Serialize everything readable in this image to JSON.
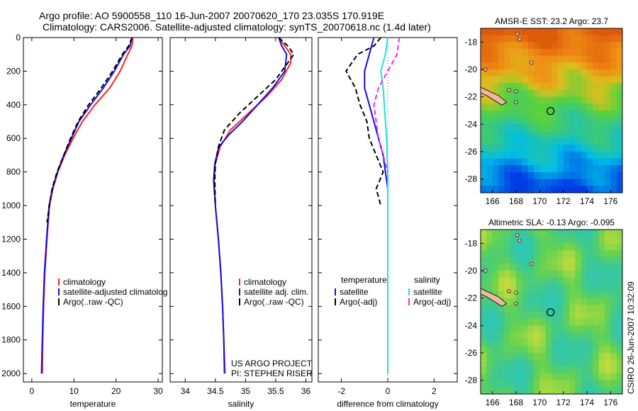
{
  "header": {
    "line1": "Argo profile: AO 5900558_110 16-Jun-2007 20070620_170 23.035S 170.919E",
    "line2": "Climatology: CARS2006. Satellite-adjusted climatology: synTS_20070618.nc (1.4d later)"
  },
  "credits": {
    "project": "US ARGO PROJECT",
    "pi": "PI: STEPHEN RISER",
    "stamp": "CSIRO 26-Jun-2007 10:32:09"
  },
  "colors": {
    "climatology": "#ff2020",
    "satellite": "#1010e0",
    "argo": "#000000",
    "sat_salinity": "#20e0e0",
    "argo_adj_sal": "#ff20ff"
  },
  "chart_data": [
    {
      "type": "line",
      "name": "temperature",
      "xlabel": "temperature",
      "ylabel": "",
      "xlim": [
        -2,
        31
      ],
      "ylim": [
        2050,
        0
      ],
      "xticks": [
        0,
        10,
        20,
        30
      ],
      "yticks": [
        0,
        200,
        400,
        600,
        800,
        1000,
        1200,
        1400,
        1600,
        1800,
        2000
      ],
      "legend": [
        "climatology",
        "satellite-adjusted climatolog",
        "Argo(..raw -QC)"
      ],
      "series": [
        {
          "name": "climatology",
          "style": "solid",
          "color": "#ff2020",
          "points": [
            [
              24,
              0
            ],
            [
              23.8,
              50
            ],
            [
              22.8,
              100
            ],
            [
              21,
              200
            ],
            [
              18.5,
              300
            ],
            [
              15,
              400
            ],
            [
              12,
              500
            ],
            [
              9.8,
              600
            ],
            [
              7.8,
              700
            ],
            [
              6.2,
              800
            ],
            [
              5,
              900
            ],
            [
              4.2,
              1000
            ],
            [
              3.6,
              1200
            ],
            [
              3.1,
              1400
            ],
            [
              2.8,
              1600
            ],
            [
              2.6,
              1800
            ],
            [
              2.5,
              2000
            ]
          ]
        },
        {
          "name": "satellite",
          "style": "solid",
          "color": "#1010e0",
          "points": [
            [
              23.8,
              0
            ],
            [
              23.3,
              50
            ],
            [
              21.8,
              100
            ],
            [
              19.6,
              200
            ],
            [
              17,
              300
            ],
            [
              14,
              400
            ],
            [
              11.2,
              500
            ],
            [
              9.4,
              600
            ],
            [
              7.6,
              700
            ],
            [
              6.1,
              800
            ],
            [
              4.9,
              900
            ],
            [
              4.1,
              1000
            ],
            [
              3.5,
              1200
            ],
            [
              3,
              1400
            ],
            [
              2.7,
              1600
            ],
            [
              2.5,
              1800
            ],
            [
              2.3,
              2000
            ]
          ]
        },
        {
          "name": "Argo",
          "style": "dashed",
          "color": "#000000",
          "points": [
            [
              23.8,
              0
            ],
            [
              23,
              50
            ],
            [
              21.5,
              100
            ],
            [
              19.2,
              200
            ],
            [
              16.5,
              300
            ],
            [
              13.5,
              400
            ],
            [
              11,
              500
            ],
            [
              9.2,
              600
            ],
            [
              7.6,
              700
            ],
            [
              6,
              800
            ],
            [
              4.8,
              900
            ],
            [
              4.2,
              1000
            ],
            [
              3.6,
              1100
            ]
          ]
        }
      ]
    },
    {
      "type": "line",
      "name": "salinity",
      "xlabel": "salinity",
      "xlim": [
        33.75,
        36.1
      ],
      "ylim": [
        2050,
        0
      ],
      "xticks": [
        34,
        34.5,
        35,
        35.5,
        36
      ],
      "legend": [
        "climatology",
        "satellite adj. clim.",
        "Argo(..raw -QC)"
      ],
      "series": [
        {
          "name": "climatology",
          "style": "solid",
          "color": "#ff2020",
          "points": [
            [
              35.55,
              0
            ],
            [
              35.65,
              50
            ],
            [
              35.75,
              100
            ],
            [
              35.75,
              150
            ],
            [
              35.6,
              250
            ],
            [
              35.35,
              350
            ],
            [
              35.05,
              450
            ],
            [
              34.75,
              550
            ],
            [
              34.58,
              650
            ],
            [
              34.5,
              750
            ],
            [
              34.48,
              850
            ],
            [
              34.5,
              1000
            ],
            [
              34.55,
              1200
            ],
            [
              34.59,
              1400
            ],
            [
              34.62,
              1600
            ],
            [
              34.64,
              1800
            ],
            [
              34.66,
              2000
            ]
          ]
        },
        {
          "name": "satellite",
          "style": "solid",
          "color": "#1010e0",
          "points": [
            [
              35.55,
              0
            ],
            [
              35.6,
              50
            ],
            [
              35.68,
              100
            ],
            [
              35.65,
              200
            ],
            [
              35.45,
              300
            ],
            [
              35.2,
              400
            ],
            [
              34.95,
              500
            ],
            [
              34.72,
              580
            ],
            [
              34.56,
              650
            ],
            [
              34.49,
              750
            ],
            [
              34.47,
              850
            ],
            [
              34.5,
              1000
            ],
            [
              34.55,
              1200
            ],
            [
              34.59,
              1400
            ],
            [
              34.62,
              1600
            ],
            [
              34.64,
              1800
            ],
            [
              34.65,
              2000
            ]
          ]
        },
        {
          "name": "Argo",
          "style": "dashed",
          "color": "#000000",
          "points": [
            [
              35.55,
              0
            ],
            [
              35.7,
              50
            ],
            [
              35.8,
              100
            ],
            [
              35.7,
              150
            ],
            [
              35.5,
              250
            ],
            [
              35.2,
              350
            ],
            [
              34.9,
              450
            ],
            [
              34.65,
              550
            ],
            [
              34.55,
              650
            ],
            [
              34.5,
              750
            ],
            [
              34.49,
              850
            ],
            [
              34.5,
              1000
            ]
          ]
        }
      ]
    },
    {
      "type": "line",
      "name": "difference",
      "xlabel": "difference from climatology",
      "xlim": [
        -3,
        3
      ],
      "ylim": [
        2050,
        0
      ],
      "xticks": [
        -2,
        0,
        2
      ],
      "legend": {
        "temperature": [
          "satellite",
          "Argo(-adj)"
        ],
        "salinity": [
          "satellite",
          "Argo(-adj)"
        ]
      },
      "legend_titles": [
        "temperature",
        "salinity"
      ],
      "series": [
        {
          "name": "temperature satellite",
          "style": "solid",
          "color": "#1010e0",
          "points": [
            [
              -0.6,
              0
            ],
            [
              -0.8,
              100
            ],
            [
              -1,
              200
            ],
            [
              -1,
              300
            ],
            [
              -0.8,
              400
            ],
            [
              -0.6,
              500
            ],
            [
              -0.4,
              600
            ],
            [
              -0.2,
              700
            ],
            [
              -0.1,
              800
            ],
            [
              0,
              900
            ],
            [
              0,
              1100
            ],
            [
              0,
              1400
            ],
            [
              0,
              2000
            ]
          ]
        },
        {
          "name": "temperature Argo",
          "style": "dashed",
          "color": "#000000",
          "points": [
            [
              -0.3,
              0
            ],
            [
              -0.6,
              50
            ],
            [
              -1.3,
              100
            ],
            [
              -1.8,
              200
            ],
            [
              -1.4,
              300
            ],
            [
              -1.2,
              400
            ],
            [
              -0.9,
              500
            ],
            [
              -0.8,
              600
            ],
            [
              -0.5,
              700
            ],
            [
              -0.2,
              800
            ],
            [
              -0.5,
              900
            ],
            [
              -0.3,
              1000
            ]
          ]
        },
        {
          "name": "salinity satellite",
          "style": "solid",
          "color": "#20e0e0",
          "points": [
            [
              0,
              0
            ],
            [
              -0.1,
              100
            ],
            [
              -0.3,
              200
            ],
            [
              -0.2,
              300
            ],
            [
              -0.15,
              400
            ],
            [
              -0.1,
              500
            ],
            [
              -0.05,
              600
            ],
            [
              0,
              800
            ],
            [
              0,
              1100
            ],
            [
              0,
              1400
            ],
            [
              0,
              2000
            ]
          ]
        },
        {
          "name": "salinity Argo",
          "style": "dashed",
          "color": "#ff20ff",
          "points": [
            [
              0.5,
              0
            ],
            [
              0.4,
              100
            ],
            [
              0,
              200
            ],
            [
              -0.4,
              300
            ],
            [
              -0.6,
              400
            ],
            [
              -0.4,
              600
            ],
            [
              -0.2,
              700
            ],
            [
              0,
              800
            ]
          ]
        }
      ]
    },
    {
      "type": "heatmap",
      "name": "sst-map",
      "title": "AMSR-E SST: 23.2 Argo: 23.7",
      "xlim": [
        165,
        177
      ],
      "ylim": [
        -29,
        -17
      ],
      "xticks": [
        166,
        168,
        170,
        172,
        174,
        176
      ],
      "yticks": [
        -18,
        -20,
        -22,
        -24,
        -26,
        -28
      ],
      "marker": {
        "lon": 170.919,
        "lat": -23.035
      }
    },
    {
      "type": "heatmap",
      "name": "sla-map",
      "title": "Altimetric SLA: -0.13 Argo: -0.095",
      "xlim": [
        165,
        177
      ],
      "ylim": [
        -29,
        -17
      ],
      "xticks": [
        166,
        168,
        170,
        172,
        174,
        176
      ],
      "yticks": [
        -18,
        -20,
        -22,
        -24,
        -26,
        -28
      ],
      "marker": {
        "lon": 170.919,
        "lat": -23.035
      }
    }
  ]
}
